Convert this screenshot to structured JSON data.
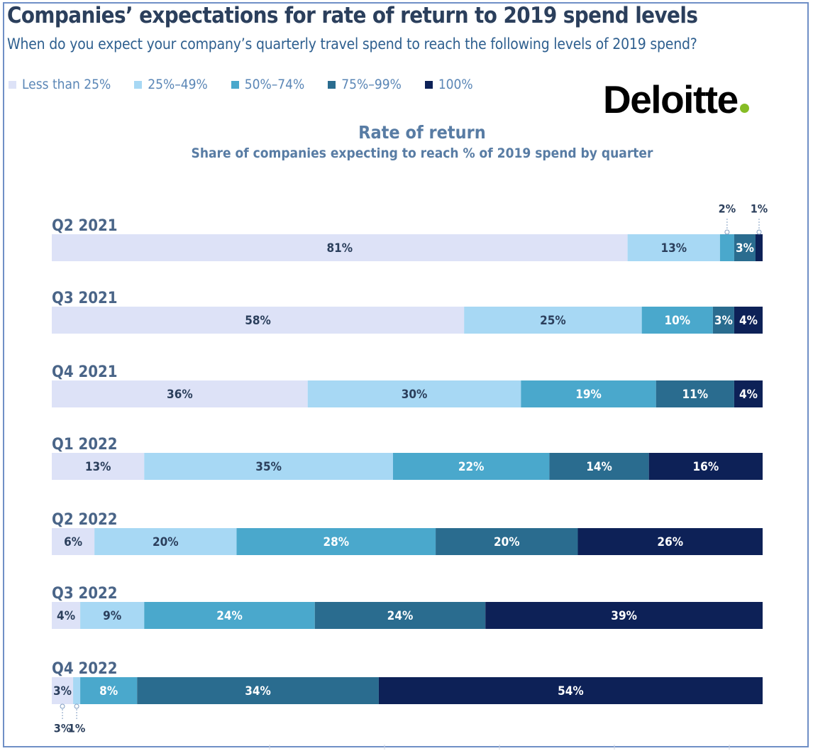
{
  "header": {
    "title": "Companies’ expectations for rate of return to 2019 spend levels",
    "subtitle": "When do you expect your company’s quarterly travel spend to reach the following levels of 2019 spend?"
  },
  "logo": {
    "text": "Deloitte",
    "dot_color": "#86bc25"
  },
  "legend": [
    {
      "label": "Less than 25%",
      "color": "#dde2f7"
    },
    {
      "label": "25%–49%",
      "color": "#a7d8f4"
    },
    {
      "label": "50%–74%",
      "color": "#4aa8cc"
    },
    {
      "label": "75%–99%",
      "color": "#2a6c8f"
    },
    {
      "label": "100%",
      "color": "#0d2157"
    }
  ],
  "chart_data": {
    "type": "bar",
    "orientation": "horizontal",
    "stacked": true,
    "title": "Rate of return",
    "subtitle": "Share of companies expecting to reach % of 2019 spend by quarter",
    "categories": [
      "Q2 2021",
      "Q3 2021",
      "Q4 2021",
      "Q1 2022",
      "Q2 2022",
      "Q3 2022",
      "Q4 2022"
    ],
    "series": [
      {
        "name": "Less than 25%",
        "values": [
          81,
          58,
          36,
          13,
          6,
          4,
          3
        ]
      },
      {
        "name": "25%–49%",
        "values": [
          13,
          25,
          30,
          35,
          20,
          9,
          1
        ]
      },
      {
        "name": "50%–74%",
        "values": [
          2,
          10,
          19,
          22,
          28,
          24,
          8
        ]
      },
      {
        "name": "75%–99%",
        "values": [
          3,
          3,
          11,
          14,
          20,
          24,
          34
        ]
      },
      {
        "name": "100%",
        "values": [
          1,
          4,
          4,
          16,
          26,
          39,
          54
        ]
      }
    ],
    "value_format": "{v}%",
    "xlim": [
      0,
      100
    ],
    "external_labels": [
      {
        "category": "Q2 2021",
        "series": "50%–74%",
        "text": "2%",
        "position": "above"
      },
      {
        "category": "Q2 2021",
        "series": "100%",
        "text": "1%",
        "position": "above"
      },
      {
        "category": "Q4 2022",
        "series": "Less than 25%",
        "text": "3%",
        "position": "below"
      },
      {
        "category": "Q4 2022",
        "series": "25%–49%",
        "text": "1%",
        "position": "below"
      }
    ]
  }
}
